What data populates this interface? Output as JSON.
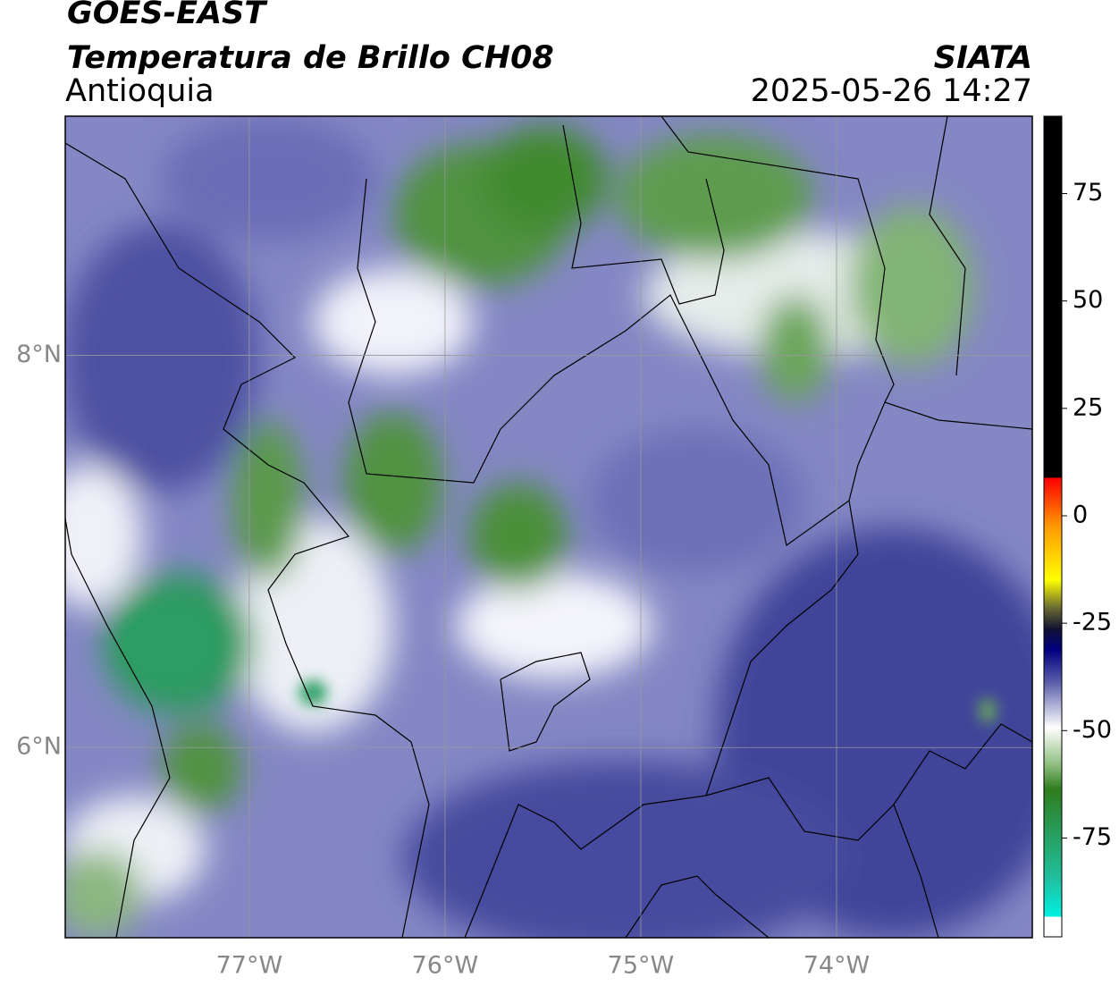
{
  "chart_data": {
    "type": "map",
    "title": "GOES-EAST",
    "subtitle": "Temperatura de Brillo CH08",
    "region": "Antioquia",
    "source": "SIATA",
    "datetime": "2025-05-26 14:27",
    "xlim": [
      -77.94,
      -73.0
    ],
    "ylim": [
      5.03,
      9.22
    ],
    "xticks": [
      {
        "value": -77,
        "label": "77°W"
      },
      {
        "value": -76,
        "label": "76°W"
      },
      {
        "value": -75,
        "label": "75°W"
      },
      {
        "value": -74,
        "label": "74°W"
      }
    ],
    "yticks": [
      {
        "value": 6,
        "label": "6°N"
      },
      {
        "value": 8,
        "label": "8°N"
      }
    ],
    "grid": true,
    "colorbar": {
      "lim": [
        -98,
        93
      ],
      "ticks": [
        -75,
        -50,
        -25,
        0,
        25,
        50,
        75
      ]
    }
  }
}
